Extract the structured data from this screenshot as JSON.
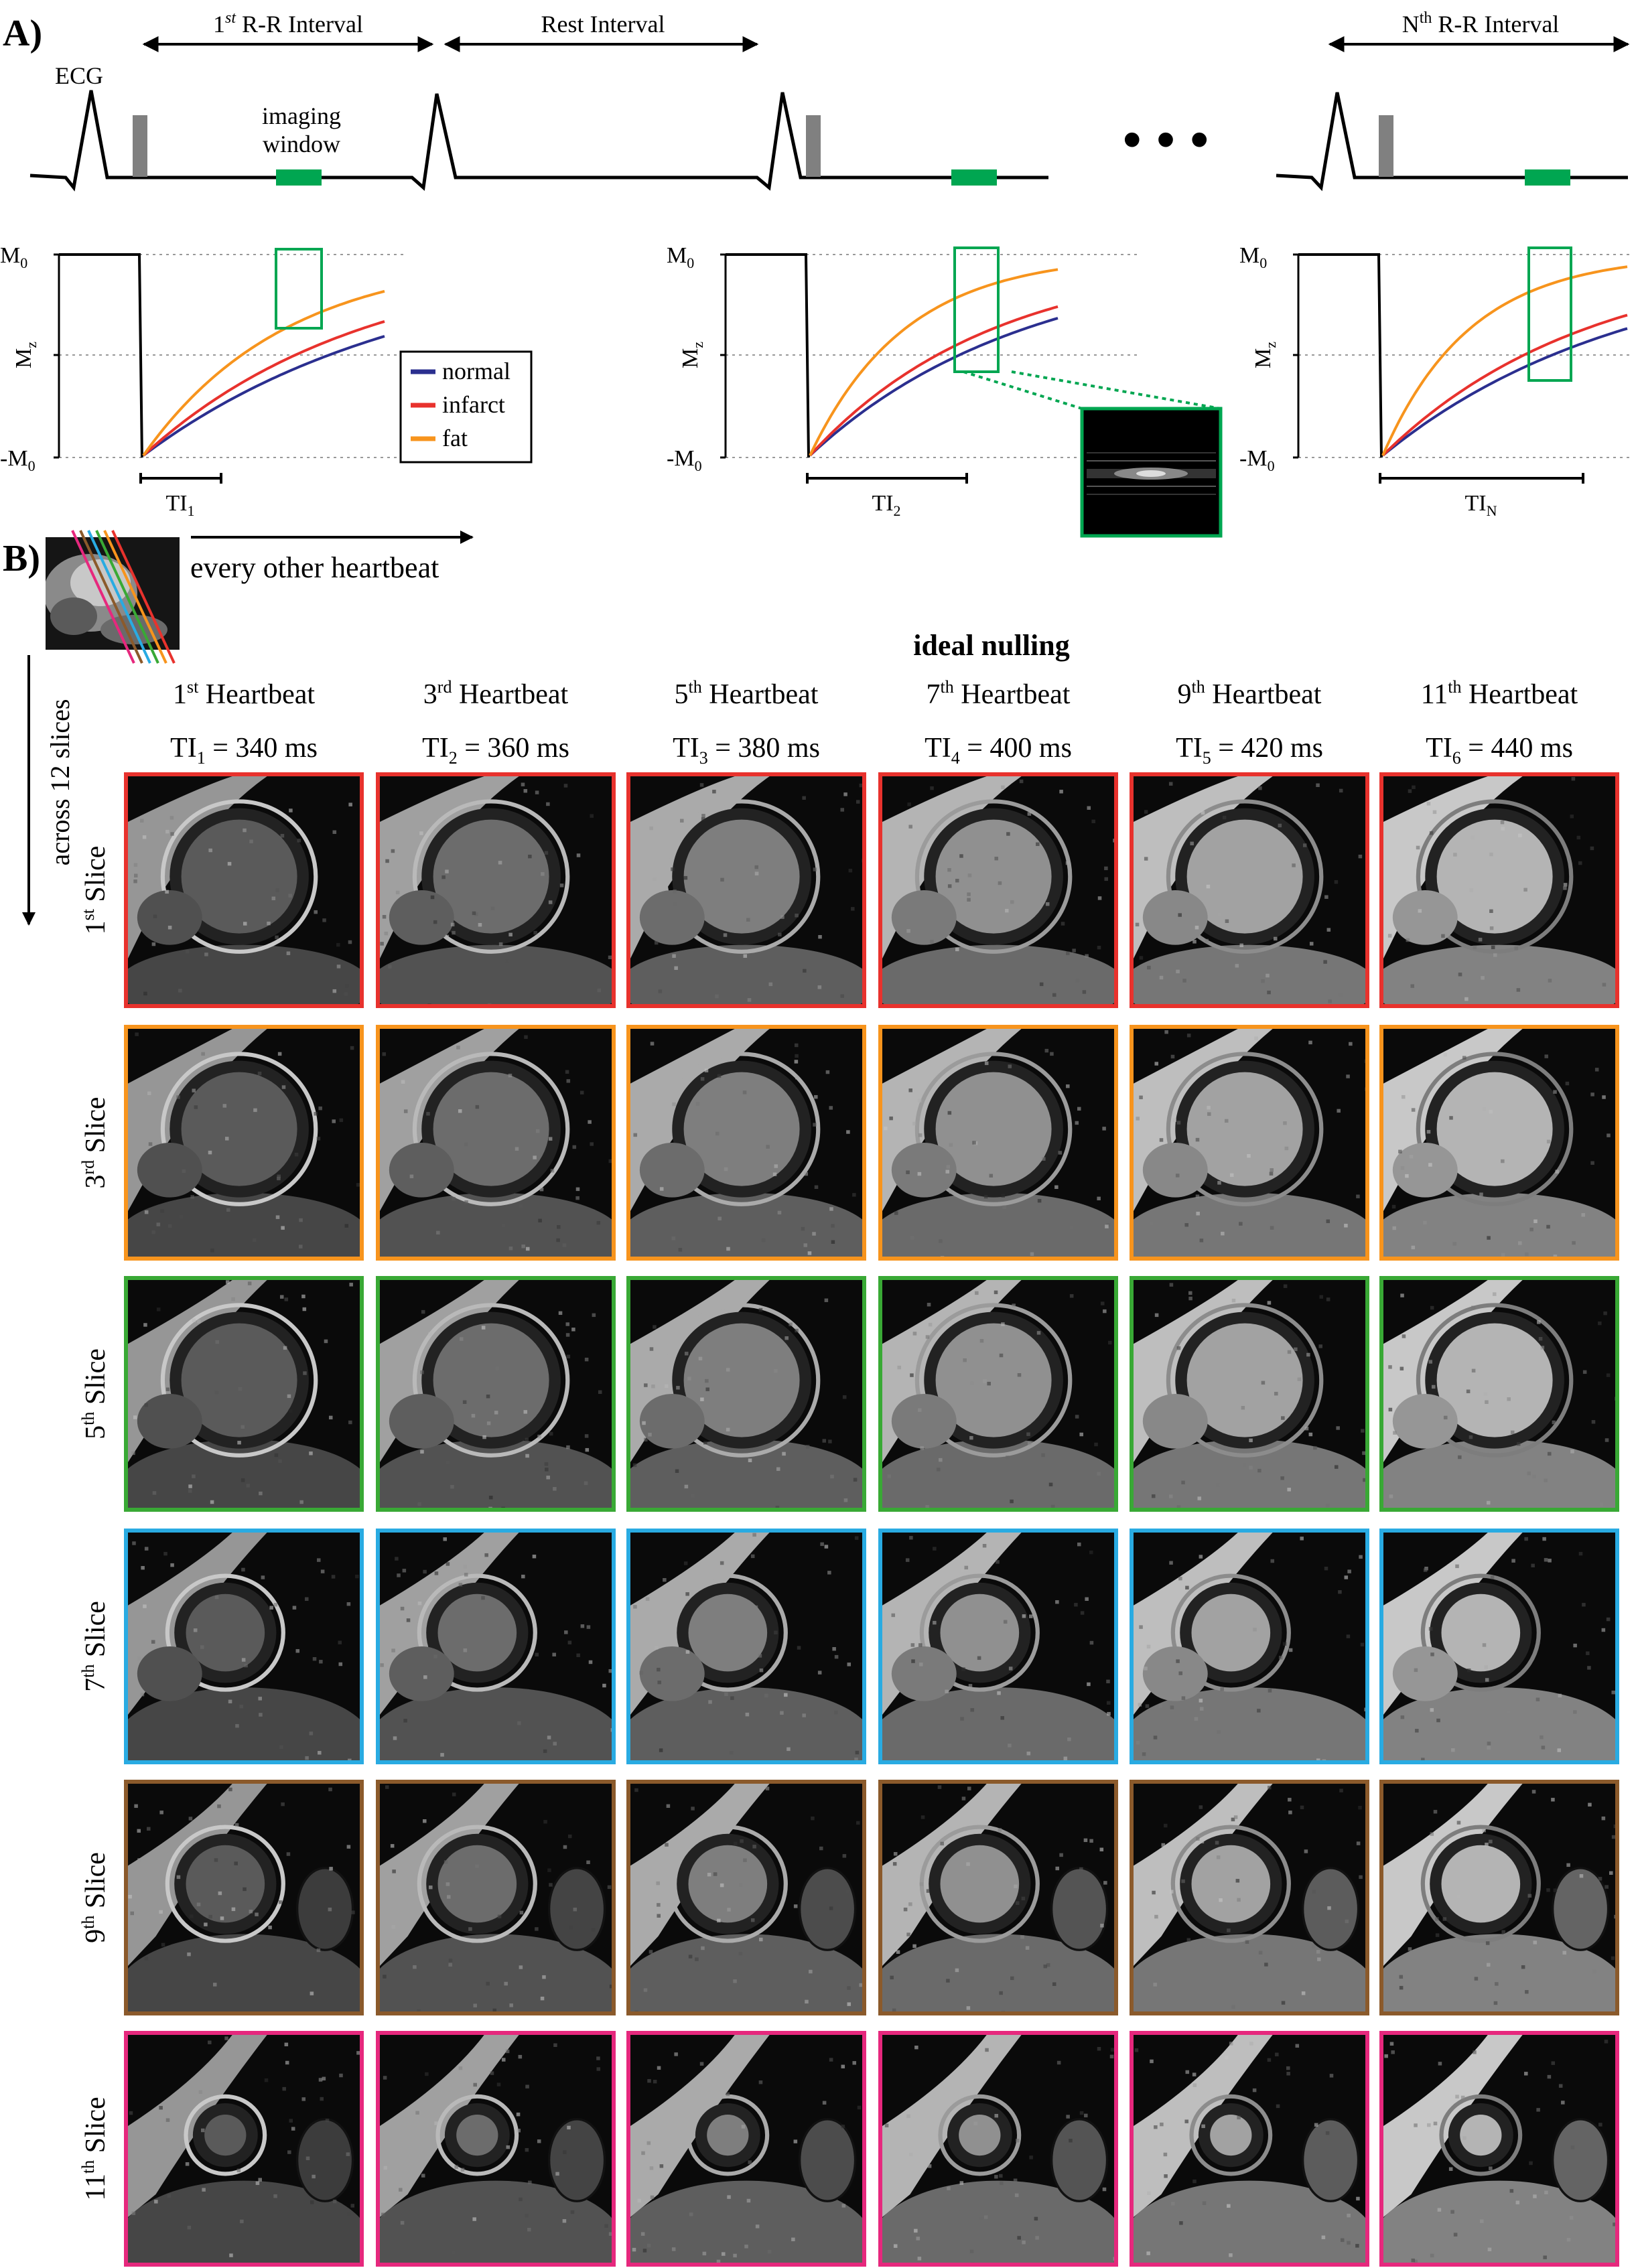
{
  "panel_a": {
    "label": "A)",
    "intervals": {
      "first": {
        "base": "1",
        "sup": "st",
        "rest": " R-R Interval"
      },
      "rest_interval": "Rest Interval",
      "nth": {
        "base": "N",
        "sup": "th",
        "rest": " R-R Interval"
      }
    },
    "ecg_label": "ECG",
    "imaging_window": [
      "imaging",
      "window"
    ],
    "ellipsis": "• • •",
    "y_labels": {
      "m0": "M",
      "m0_sub": "0",
      "mz": "M",
      "mz_sub": "z",
      "neg": "-M",
      "neg_sub": "0"
    },
    "ti_labels": [
      {
        "base": "TI",
        "sub": "1"
      },
      {
        "base": "TI",
        "sub": "2"
      },
      {
        "base": "TI",
        "sub": "N"
      }
    ],
    "legend": [
      "normal",
      "infarct",
      "fat"
    ],
    "colors": {
      "normal": "#2b2f8f",
      "infarct": "#e8322d",
      "fat": "#f7941d",
      "window": "#00a651",
      "pulse": "#808080"
    }
  },
  "panel_b": {
    "label": "B)",
    "every_other": "every other heartbeat",
    "across": "across 12 slices",
    "ideal_nulling": "ideal nulling",
    "columns": [
      {
        "n": "1",
        "sup": "st",
        "hb": " Heartbeat",
        "ti_sub": "1",
        "ms": " = 340 ms"
      },
      {
        "n": "3",
        "sup": "rd",
        "hb": " Heartbeat",
        "ti_sub": "2",
        "ms": " = 360 ms"
      },
      {
        "n": "5",
        "sup": "th",
        "hb": " Heartbeat",
        "ti_sub": "3",
        "ms": " = 380 ms"
      },
      {
        "n": "7",
        "sup": "th",
        "hb": " Heartbeat",
        "ti_sub": "4",
        "ms": " = 400 ms"
      },
      {
        "n": "9",
        "sup": "th",
        "hb": " Heartbeat",
        "ti_sub": "5",
        "ms": " = 420 ms"
      },
      {
        "n": "11",
        "sup": "th",
        "hb": " Heartbeat",
        "ti_sub": "6",
        "ms": " = 440 ms"
      }
    ],
    "ti_base": "TI",
    "rows": [
      {
        "n": "1",
        "sup": "st",
        "word": " Slice",
        "color": "#e8322d"
      },
      {
        "n": "3",
        "sup": "rd",
        "word": " Slice",
        "color": "#f7941d"
      },
      {
        "n": "5",
        "sup": "th",
        "word": " Slice",
        "color": "#39a935"
      },
      {
        "n": "7",
        "sup": "th",
        "word": " Slice",
        "color": "#29abe2"
      },
      {
        "n": "9",
        "sup": "th",
        "word": " Slice",
        "color": "#8b5a2b"
      },
      {
        "n": "11",
        "sup": "th",
        "word": " Slice",
        "color": "#e6287d"
      }
    ],
    "scout_line_colors": [
      "#e6287d",
      "#8b5a2b",
      "#29abe2",
      "#39a935",
      "#f7941d",
      "#e8322d"
    ]
  }
}
